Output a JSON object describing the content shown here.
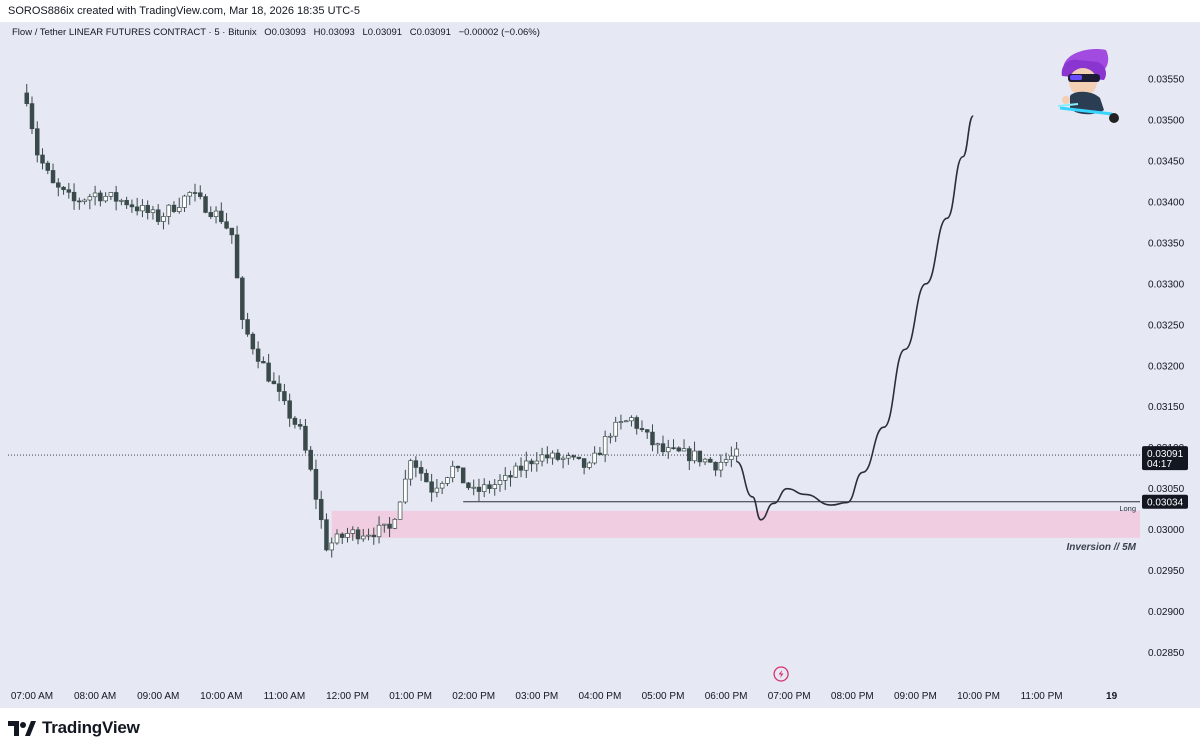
{
  "header": {
    "text": "SOROS886ix created with TradingView.com, Mar 18, 2026 18:35 UTC-5"
  },
  "legend": {
    "symbol": "Flow / Tether LINEAR FUTURES CONTRACT · 5 · Bitunix",
    "open": "O0.03093",
    "high": "H0.03093",
    "low": "L0.03091",
    "close": "C0.03091",
    "change": "−0.00002 (−0.06%)"
  },
  "footer": {
    "logo_text": "TradingView",
    "logo_icon": "tradingview-logo-icon"
  },
  "colors": {
    "background": "#e6e9f4",
    "candle_up": "#ffffff",
    "candle_down": "#3a4a4a",
    "wick": "#3a4a4a",
    "zone": "#f0cde0",
    "projection": "#2a2e39",
    "price_tag": "#131722",
    "bolt": "#d6336c"
  },
  "chart_data": {
    "type": "candlestick",
    "y_ticks": [
      "0.03550",
      "0.03500",
      "0.03450",
      "0.03400",
      "0.03350",
      "0.03300",
      "0.03250",
      "0.03200",
      "0.03150",
      "0.03100",
      "0.03050",
      "0.03000",
      "0.02950",
      "0.02900",
      "0.02850"
    ],
    "x_ticks": [
      "07:00 AM",
      "08:00 AM",
      "09:00 AM",
      "10:00 AM",
      "11:00 AM",
      "12:00 PM",
      "01:00 PM",
      "02:00 PM",
      "03:00 PM",
      "04:00 PM",
      "05:00 PM",
      "06:00 PM",
      "07:00 PM",
      "08:00 PM",
      "09:00 PM",
      "10:00 PM",
      "11:00 PM",
      "19"
    ],
    "ylim": [
      0.02825,
      0.03583
    ],
    "last_price": {
      "label": "0.03091",
      "countdown": "04:17",
      "value": 0.03091
    },
    "long_level": {
      "label": "0.03034",
      "value": 0.03034,
      "text": "Long",
      "from_time": "01:50 PM"
    },
    "zone": {
      "high": 0.03023,
      "low": 0.0299,
      "from_time": "11:45 AM",
      "label": "Inversion // 5M"
    },
    "projection_path": [
      [
        "06:10 PM",
        0.03083
      ],
      [
        "06:25 PM",
        0.0304
      ],
      [
        "06:33 PM",
        0.03012
      ],
      [
        "06:45 PM",
        0.03032
      ],
      [
        "06:58 PM",
        0.0305
      ],
      [
        "07:15 PM",
        0.03043
      ],
      [
        "07:40 PM",
        0.0303
      ],
      [
        "07:55 PM",
        0.03033
      ],
      [
        "08:10 PM",
        0.0307
      ],
      [
        "08:30 PM",
        0.03125
      ],
      [
        "08:50 PM",
        0.0322
      ],
      [
        "09:10 PM",
        0.033
      ],
      [
        "09:30 PM",
        0.0338
      ],
      [
        "09:45 PM",
        0.03455
      ],
      [
        "09:55 PM",
        0.03505
      ]
    ],
    "anchors": [
      [
        "06:55 AM",
        0.03528
      ],
      [
        "07:05 AM",
        0.0346
      ],
      [
        "07:20 AM",
        0.0342
      ],
      [
        "07:40 AM",
        0.034
      ],
      [
        "08:00 AM",
        0.0341
      ],
      [
        "08:30 AM",
        0.034
      ],
      [
        "09:00 AM",
        0.0338
      ],
      [
        "09:30 AM",
        0.0341
      ],
      [
        "10:00 AM",
        0.0338
      ],
      [
        "10:10 AM",
        0.0336
      ],
      [
        "10:20 AM",
        0.0325
      ],
      [
        "10:40 AM",
        0.032
      ],
      [
        "11:00 AM",
        0.0315
      ],
      [
        "11:15 AM",
        0.0312
      ],
      [
        "11:25 AM",
        0.0307
      ],
      [
        "11:40 AM",
        0.0298
      ],
      [
        "12:00 PM",
        0.02995
      ],
      [
        "12:40 PM",
        0.03
      ],
      [
        "12:55 PM",
        0.0306
      ],
      [
        "01:00 PM",
        0.0309
      ],
      [
        "01:20 PM",
        0.0305
      ],
      [
        "01:40 PM",
        0.03075
      ],
      [
        "02:00 PM",
        0.03045
      ],
      [
        "02:30 PM",
        0.0306
      ],
      [
        "03:00 PM",
        0.0309
      ],
      [
        "03:30 PM",
        0.03085
      ],
      [
        "03:50 PM",
        0.03075
      ],
      [
        "04:10 PM",
        0.0312
      ],
      [
        "04:30 PM",
        0.03135
      ],
      [
        "04:50 PM",
        0.03105
      ],
      [
        "05:00 PM",
        0.03095
      ],
      [
        "05:30 PM",
        0.0309
      ],
      [
        "05:50 PM",
        0.0308
      ],
      [
        "06:05 PM",
        0.03088
      ],
      [
        "06:10 PM",
        0.03091
      ]
    ]
  }
}
